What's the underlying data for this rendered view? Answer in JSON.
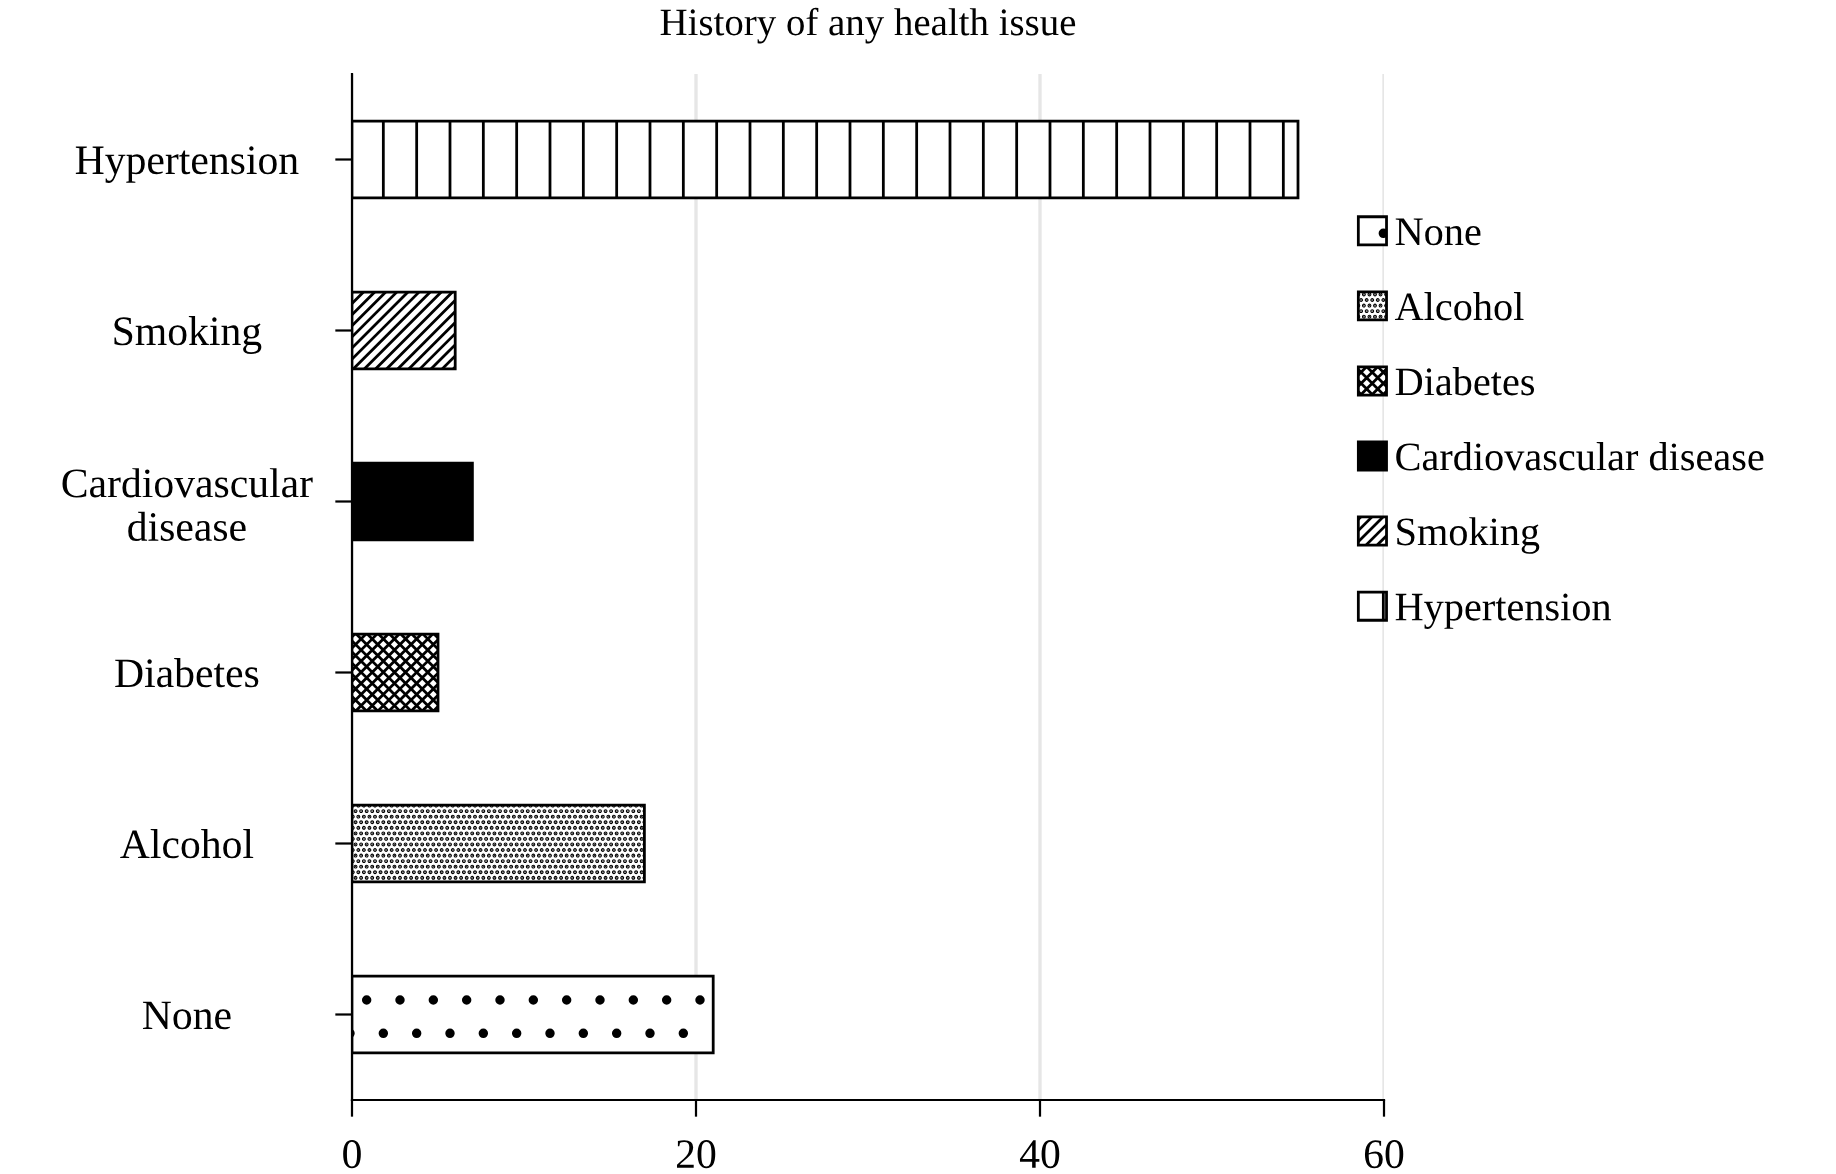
{
  "chart_data": {
    "type": "bar",
    "orientation": "horizontal",
    "title": "History of any health issue",
    "categories": [
      "Hypertension",
      "Smoking",
      "Cardiovascular disease",
      "Diabetes",
      "Alcohol",
      "None"
    ],
    "series": [
      {
        "name": "None",
        "color": "#000000",
        "values": [
          null,
          null,
          null,
          null,
          null,
          21
        ]
      },
      {
        "name": "Alcohol",
        "color": "#000000",
        "values": [
          null,
          null,
          null,
          null,
          17,
          null
        ]
      },
      {
        "name": "Diabetes",
        "color": "#000000",
        "values": [
          null,
          null,
          null,
          5,
          null,
          null
        ]
      },
      {
        "name": "Cardiovascular disease",
        "color": "#000000",
        "values": [
          null,
          null,
          7,
          null,
          null,
          null
        ]
      },
      {
        "name": "Smoking",
        "color": "#000000",
        "values": [
          null,
          6,
          null,
          null,
          null,
          null
        ]
      },
      {
        "name": "Hypertension",
        "color": "#000000",
        "values": [
          55,
          null,
          null,
          null,
          null,
          null
        ]
      }
    ],
    "xlim": [
      0,
      60
    ],
    "xticks": [
      0,
      20,
      40,
      60
    ],
    "grid": "x",
    "legend": "right"
  }
}
